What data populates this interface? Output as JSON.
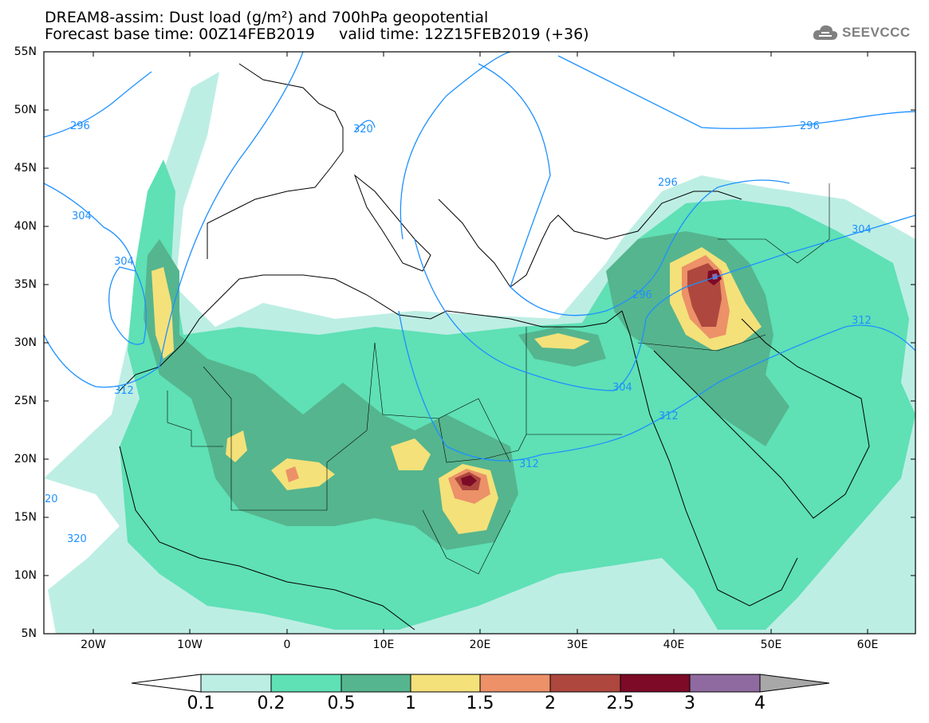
{
  "title": {
    "line1": "DREAM8-assim: Dust load (g/m²) and 700hPa geopotential",
    "line2": "Forecast base time: 00Z14FEB2019     valid time: 12Z15FEB2019 (+36)"
  },
  "logo": {
    "icon": "cloud-icon",
    "text": "SEEVCCC"
  },
  "axes": {
    "lat_ticks": [
      "55N",
      "50N",
      "45N",
      "40N",
      "35N",
      "30N",
      "25N",
      "20N",
      "15N",
      "10N",
      "5N"
    ],
    "lon_ticks": [
      "20W",
      "10W",
      "0",
      "10E",
      "20E",
      "30E",
      "40E",
      "50E",
      "60E"
    ]
  },
  "colorbar": {
    "labels": [
      "0.1",
      "0.2",
      "0.5",
      "1",
      "1.5",
      "2",
      "2.5",
      "3",
      "4"
    ],
    "colors": [
      "#bdeee4",
      "#5fe0b5",
      "#55b58e",
      "#f4e17a",
      "#ec9168",
      "#ae473e",
      "#7d0a27",
      "#8f6aa0",
      "#a8a8a8"
    ]
  },
  "contours": {
    "color": "#1e90ff",
    "labels": [
      "296",
      "296",
      "296",
      "296",
      "304",
      "304",
      "304",
      "304",
      "312",
      "312",
      "312",
      "312",
      "320",
      "320",
      "20"
    ]
  }
}
